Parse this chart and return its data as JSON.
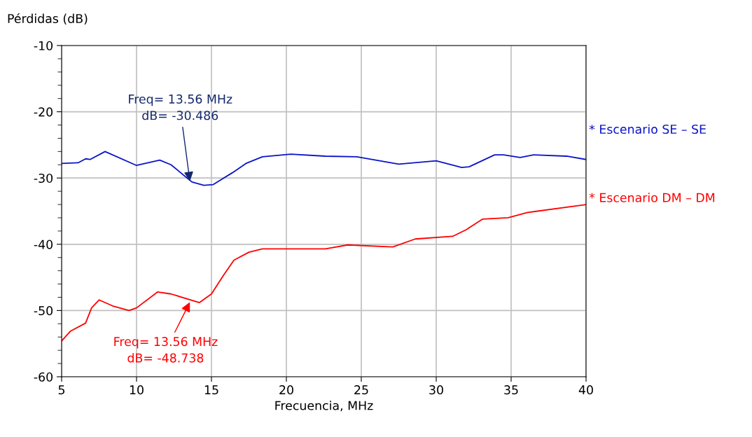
{
  "chart_data": {
    "type": "line",
    "xlabel": "Frecuencia, MHz",
    "ylabel": "Pérdidas (dB)",
    "xlim": [
      5,
      40
    ],
    "xticks": [
      5,
      10,
      15,
      20,
      25,
      30,
      35,
      40
    ],
    "ylim": [
      -60,
      -10
    ],
    "yticks": [
      -60,
      {
        "value": -58,
        "label": null
      },
      {
        "value": -56,
        "label": null
      },
      {
        "value": -54,
        "label": null
      },
      {
        "value": -52,
        "label": null
      },
      -50,
      {
        "value": -48,
        "label": null
      },
      {
        "value": -46,
        "label": null
      },
      {
        "value": -44,
        "label": null
      },
      {
        "value": -42,
        "label": null
      },
      -40,
      {
        "value": -38,
        "label": null
      },
      {
        "value": -36,
        "label": null
      },
      {
        "value": -34,
        "label": null
      },
      {
        "value": -32,
        "label": null
      },
      -30,
      {
        "value": -28,
        "label": null
      },
      {
        "value": -26,
        "label": null
      },
      {
        "value": -24,
        "label": null
      },
      {
        "value": -22,
        "label": null
      },
      -20,
      {
        "value": -18,
        "label": null
      },
      {
        "value": -16,
        "label": null
      },
      {
        "value": -14,
        "label": null
      },
      {
        "value": -12,
        "label": null
      },
      -10
    ],
    "grid": true,
    "legend": false,
    "marker": "none",
    "line_style": "solid",
    "series": [
      {
        "name": "* Escenario SE – SE",
        "color": "#0a14c8",
        "x": [
          5.0,
          6.1,
          6.6,
          6.9,
          7.9,
          10.0,
          11.55,
          12.3,
          13.7,
          14.5,
          15.1,
          16.4,
          17.3,
          18.4,
          20.3,
          22.6,
          24.7,
          27.5,
          30.0,
          31.7,
          32.2,
          33.9,
          34.5,
          35.6,
          36.5,
          38.7,
          40.0
        ],
        "values": [
          -27.8,
          -27.7,
          -27.1,
          -27.2,
          -26.0,
          -28.1,
          -27.3,
          -28.0,
          -30.6,
          -31.1,
          -31.0,
          -29.2,
          -27.8,
          -26.8,
          -26.4,
          -26.7,
          -26.8,
          -27.9,
          -27.4,
          -28.4,
          -28.3,
          -26.5,
          -26.5,
          -26.9,
          -26.5,
          -26.7,
          -27.2
        ]
      },
      {
        "name": "* Escenario DM – DM",
        "color": "#ff0000",
        "x": [
          5.0,
          5.6,
          6.6,
          7.0,
          7.5,
          8.4,
          9.5,
          10.0,
          11.4,
          12.3,
          14.2,
          15.0,
          15.8,
          16.5,
          17.5,
          18.4,
          20.4,
          22.6,
          24.1,
          27.1,
          28.6,
          31.1,
          32.0,
          33.1,
          34.8,
          36.1,
          40.0
        ],
        "values": [
          -54.6,
          -53.1,
          -51.9,
          -49.6,
          -48.4,
          -49.3,
          -50.0,
          -49.6,
          -47.2,
          -47.5,
          -48.8,
          -47.5,
          -44.7,
          -42.4,
          -41.2,
          -40.7,
          -40.7,
          -40.7,
          -40.1,
          -40.4,
          -39.2,
          -38.8,
          -37.8,
          -36.2,
          -36.0,
          -35.2,
          -34.0
        ]
      }
    ],
    "annotations": [
      {
        "text": "Freq= 13.56 MHz\ndB= -30.486",
        "x": 13.56,
        "y": -30.486
      },
      {
        "text": "Freq= 13.56 MHz\ndB= -48.738",
        "x": 13.56,
        "y": -48.738
      }
    ]
  }
}
